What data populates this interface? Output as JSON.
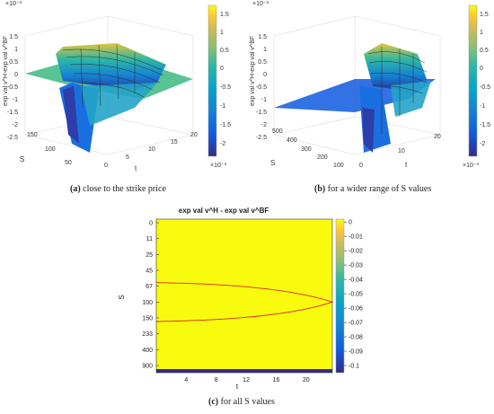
{
  "figure": {
    "panels": [
      {
        "id": "a",
        "caption_label": "(a)",
        "caption_text": "close to the strike price",
        "exponent_top": "×10⁻³",
        "zlabel": "exp val v^H-exp val v^BF",
        "s_label": "S",
        "t_label": "t",
        "s_ticks": [
          "150",
          "100",
          "50"
        ],
        "t_ticks": [
          "0",
          "5",
          "10",
          "15",
          "20"
        ],
        "z_ticks": [
          "1.5",
          "1",
          "0.5",
          "0",
          "-0.5",
          "-1",
          "-1.5",
          "-2",
          "-2.5"
        ],
        "colorbar_ticks": [
          "1.5",
          "1",
          "0.5",
          "0",
          "-0.5",
          "-1",
          "-1.5",
          "-2"
        ],
        "colorbar_exponent": "×10⁻³"
      },
      {
        "id": "b",
        "caption_label": "(b)",
        "caption_text": "for a wider range of S values",
        "exponent_top": "×10⁻³",
        "zlabel": "exp val v^H-exp val v^BF",
        "s_label": "S",
        "t_label": "t",
        "s_ticks": [
          "500",
          "400",
          "300",
          "200",
          "100"
        ],
        "t_ticks": [
          "0",
          "10",
          "20"
        ],
        "z_ticks": [
          "1.5",
          "1",
          "0.5",
          "0",
          "-0.5",
          "-1",
          "-1.5",
          "-2",
          "-2.5"
        ],
        "colorbar_ticks": [
          "1.5",
          "1",
          "0.5",
          "0",
          "-0.5",
          "-1",
          "-1.5",
          "-2"
        ],
        "colorbar_exponent": "×10⁻³"
      }
    ]
  },
  "chart_data": {
    "type": "heatmap",
    "title": "exp val v^H - exp val v^BF",
    "xlabel": "t",
    "ylabel": "S",
    "caption_label": "(c)",
    "caption_text": "for all S values",
    "x_ticks": [
      4,
      8,
      12,
      16,
      20
    ],
    "y_tick_labels": [
      "0",
      "11",
      "25",
      "45",
      "67",
      "100",
      "150",
      "233",
      "400",
      "900"
    ],
    "colorbar_ticks": [
      0,
      -0.01,
      -0.02,
      -0.03,
      -0.04,
      -0.05,
      -0.06,
      -0.07,
      -0.08,
      -0.09,
      -0.1
    ],
    "colorbar_range": [
      -0.105,
      0.002
    ],
    "colormap": "parula",
    "background_value": 0,
    "band_value": -0.105,
    "contour_color": "#d62728",
    "x_max": 23.5
  }
}
